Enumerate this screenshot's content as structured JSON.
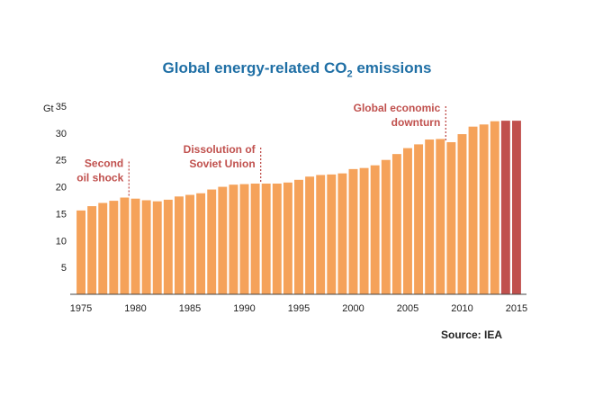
{
  "chart_data": {
    "type": "bar",
    "title_main": "Global energy-related CO",
    "title_sub": "2",
    "title_end": " emissions",
    "ylabel": "Gt",
    "ylim": [
      0,
      35
    ],
    "yticks": [
      5,
      10,
      15,
      20,
      25,
      30,
      35
    ],
    "xlim": [
      1974.5,
      2015.5
    ],
    "xticks": [
      1975,
      1980,
      1985,
      1990,
      1995,
      2000,
      2005,
      2010,
      2015
    ],
    "grid": false,
    "series": [
      {
        "x": [
          1975,
          1976,
          1977,
          1978,
          1979,
          1980,
          1981,
          1982,
          1983,
          1984,
          1985,
          1986,
          1987,
          1988,
          1989,
          1990,
          1991,
          1992,
          1993,
          1994,
          1995,
          1996,
          1997,
          1998,
          1999,
          2000,
          2001,
          2002,
          2003,
          2004,
          2005,
          2006,
          2007,
          2008,
          2009,
          2010,
          2011,
          2012,
          2013
        ],
        "values": [
          15.6,
          16.4,
          17.0,
          17.4,
          18.0,
          17.8,
          17.5,
          17.3,
          17.6,
          18.2,
          18.5,
          18.8,
          19.5,
          20.0,
          20.4,
          20.5,
          20.6,
          20.6,
          20.6,
          20.8,
          21.3,
          21.9,
          22.2,
          22.3,
          22.5,
          23.3,
          23.5,
          24.0,
          25.0,
          26.1,
          27.2,
          27.9,
          28.8,
          28.9,
          28.3,
          29.8,
          31.2,
          31.6,
          32.2
        ],
        "color": "#f5a25a"
      },
      {
        "x": [
          2014,
          2015
        ],
        "values": [
          32.3,
          32.3
        ],
        "color": "#c0504d"
      }
    ],
    "annotations": [
      {
        "lines": [
          "Second",
          "oil shock"
        ],
        "x": 1979.4,
        "value": 18.0,
        "color": "#c0504d"
      },
      {
        "lines": [
          "Dissolution of",
          "Soviet Union"
        ],
        "x": 1991.5,
        "value": 20.6,
        "color": "#c0504d"
      },
      {
        "lines": [
          "Global economic",
          "downturn"
        ],
        "x": 2008.5,
        "value": 28.3,
        "color": "#c0504d"
      }
    ],
    "source": "Source: IEA"
  }
}
